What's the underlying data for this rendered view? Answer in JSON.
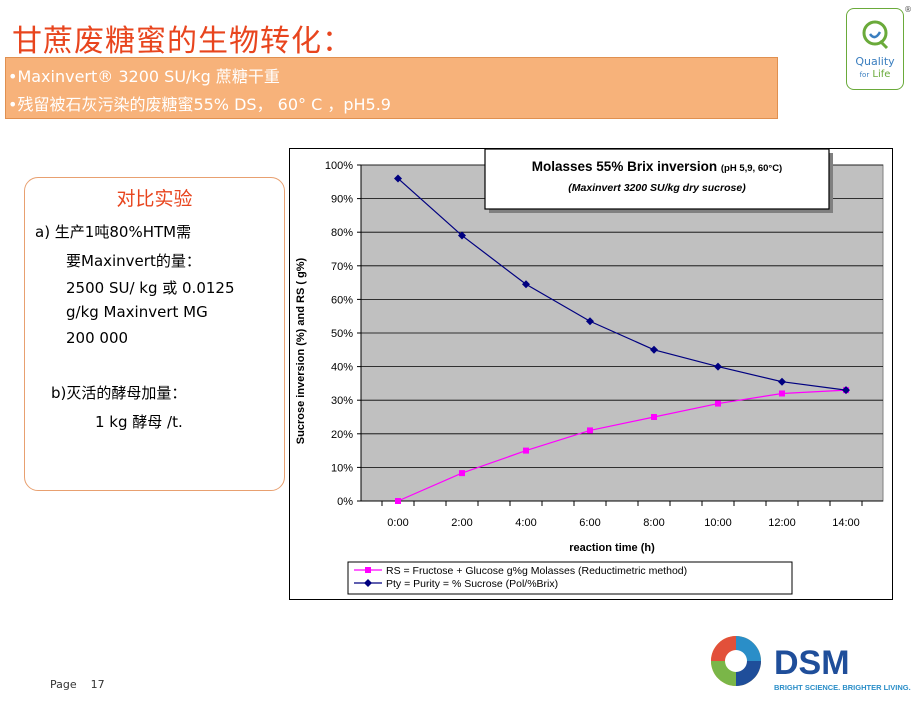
{
  "slide": {
    "title": "甘蔗废糖蜜的生物转化：",
    "bullet1": "•Maxinvert® 3200 SU/kg 蔗糖干重",
    "bullet2": "•残留被石灰污染的废糖蜜55% DS， 60° C ，pH5.9",
    "page_label": "Page",
    "page_number": "17"
  },
  "quality_logo": {
    "reg": "®",
    "line1": "Quality",
    "line2_small": "for",
    "line2": "Life"
  },
  "compare_box": {
    "heading": "对比实验",
    "a_line1": "a) 生产1吨80%HTM需",
    "a_line2": "要Maxinvert的量：",
    "a_line3": "2500 SU/ kg 或 0.0125",
    "a_line4": "g/kg Maxinvert MG",
    "a_line5": "200 000",
    "b_line1": "b)灭活的酵母加量：",
    "b_line2": "1 kg 酵母 /t."
  },
  "dsm_logo": {
    "name": "DSM",
    "tagline": "BRIGHT SCIENCE. BRIGHTER LIVING."
  },
  "colors": {
    "title": "#e8451e",
    "band": "#f7b27a",
    "plot_bg": "#c0c0c0",
    "series_rs": "#ff00ff",
    "series_pty": "#000080"
  },
  "chart_data": {
    "type": "line",
    "title_line1": "Molasses 55% Brix inversion",
    "title_line1_small": "(pH 5,9, 60°C)",
    "title_line2": "(Maxinvert 3200 SU/kg dry sucrose)",
    "xlabel": "reaction time (h)",
    "ylabel": "Sucrose inversion (%) and RS ( g%)",
    "x": [
      "0:00",
      "2:00",
      "4:00",
      "6:00",
      "8:00",
      "10:00",
      "12:00",
      "14:00"
    ],
    "x_hours": [
      0,
      2,
      4,
      6,
      8,
      10,
      12,
      14
    ],
    "ylim": [
      0,
      100
    ],
    "yticks": [
      "0%",
      "10%",
      "20%",
      "30%",
      "40%",
      "50%",
      "60%",
      "70%",
      "80%",
      "90%",
      "100%"
    ],
    "series": [
      {
        "name": "RS = Fructose + Glucose g%g Molasses (Reductimetric method)",
        "marker": "square",
        "color": "#ff00ff",
        "values": [
          0,
          8.3,
          15,
          21,
          25,
          29,
          32,
          33
        ]
      },
      {
        "name": "Pty = Purity = % Sucrose (Pol/%Brix)",
        "marker": "diamond",
        "color": "#000080",
        "values": [
          96,
          79,
          64.5,
          53.5,
          45,
          40,
          35.5,
          33
        ]
      }
    ],
    "grid": true,
    "legend": "bottom"
  }
}
